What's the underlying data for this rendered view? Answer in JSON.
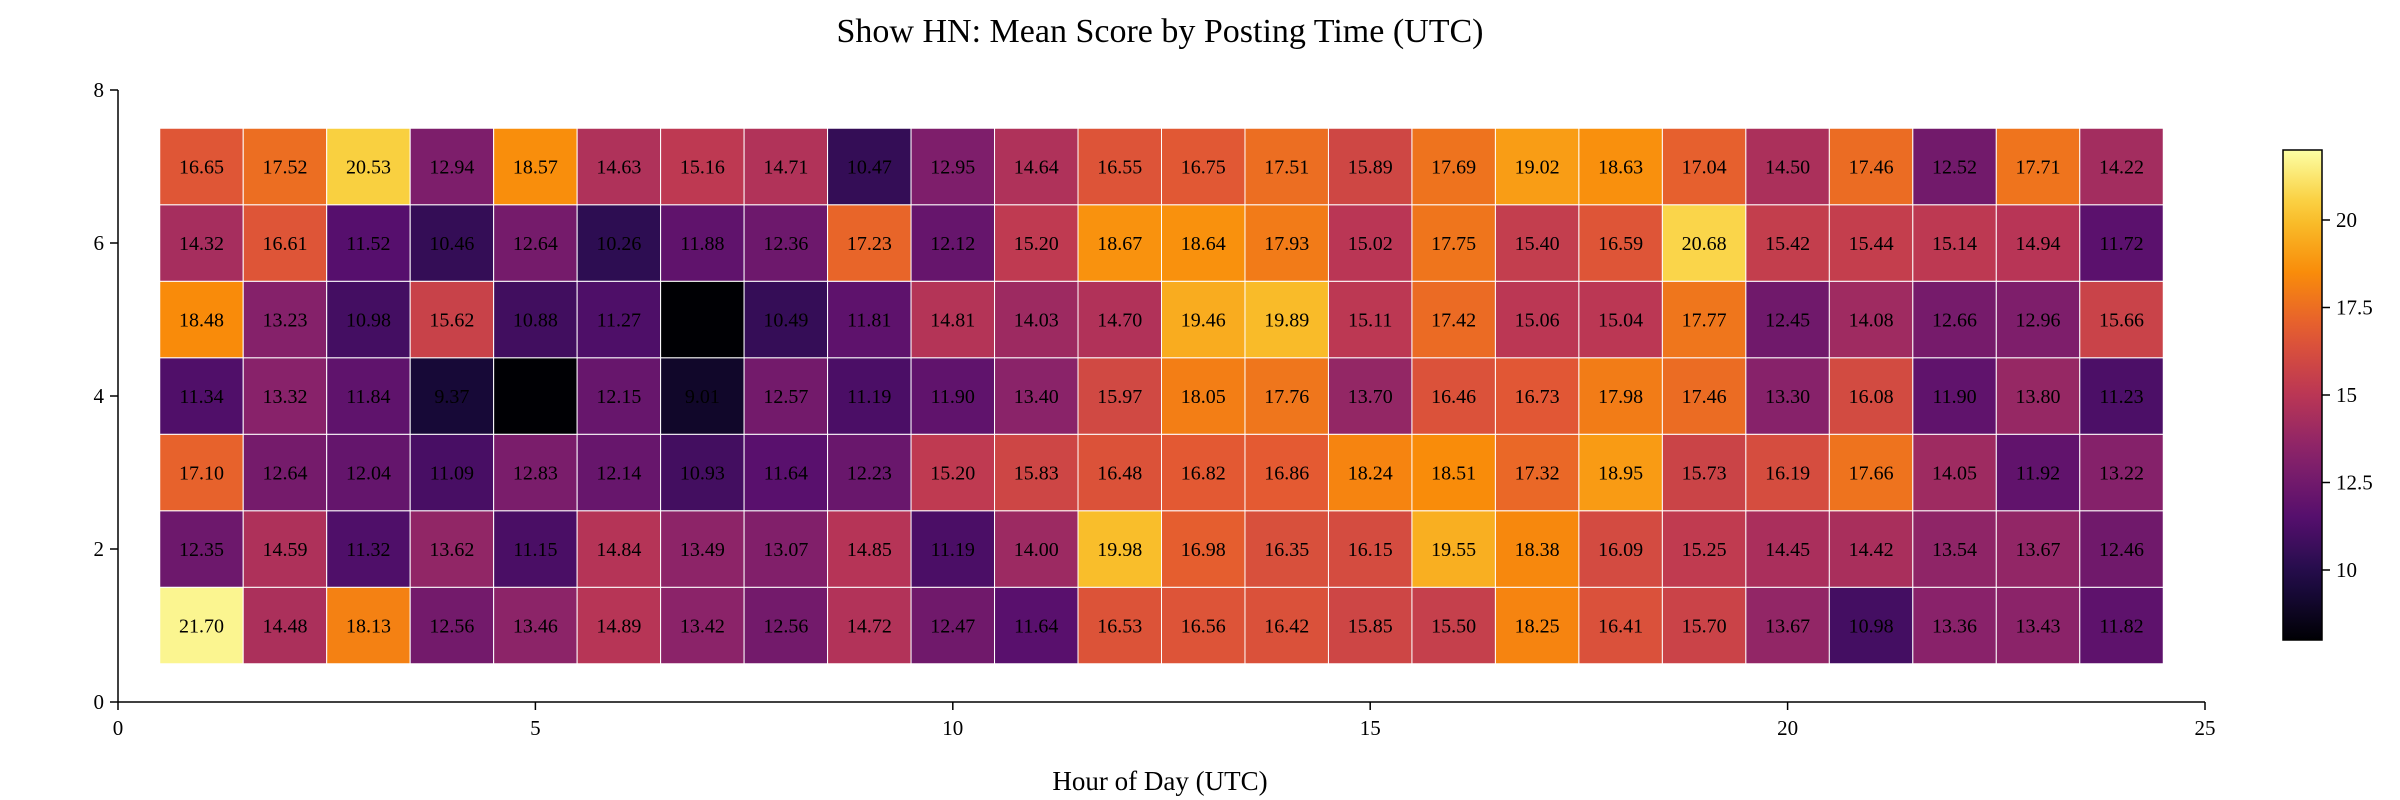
{
  "chart_data": {
    "type": "heatmap",
    "title": "Show HN: Mean Score by Posting Time (UTC)",
    "xlabel": "Hour of Day (UTC)",
    "ylabel": "",
    "xlim": [
      0,
      25
    ],
    "ylim": [
      0,
      8
    ],
    "x_ticks": [
      0,
      5,
      10,
      15,
      20,
      25
    ],
    "y_ticks": [
      0,
      2,
      4,
      6,
      8
    ],
    "x_categories": [
      1,
      2,
      3,
      4,
      5,
      6,
      7,
      8,
      9,
      10,
      11,
      12,
      13,
      14,
      15,
      16,
      17,
      18,
      19,
      20,
      21,
      22,
      23,
      24
    ],
    "y_categories": [
      1,
      2,
      3,
      4,
      5,
      6,
      7
    ],
    "grid": false,
    "colormap": "inferno",
    "color_range": [
      8,
      22
    ],
    "colorbar_ticks": [
      10,
      12.5,
      15,
      17.5,
      20
    ],
    "colorbar_tick_labels": [
      "10",
      "12.5",
      "15",
      "17.5",
      "20"
    ],
    "values": [
      [
        21.7,
        14.48,
        18.13,
        12.56,
        13.46,
        14.89,
        13.42,
        12.56,
        14.72,
        12.47,
        11.64,
        16.53,
        16.56,
        16.42,
        15.85,
        15.5,
        18.25,
        16.41,
        15.7,
        13.67,
        10.98,
        13.36,
        13.43,
        11.82
      ],
      [
        12.35,
        14.59,
        11.32,
        13.62,
        11.15,
        14.84,
        13.49,
        13.07,
        14.85,
        11.19,
        14.0,
        19.98,
        16.98,
        16.35,
        16.15,
        19.55,
        18.38,
        16.09,
        15.25,
        14.45,
        14.42,
        13.54,
        13.67,
        12.46
      ],
      [
        17.1,
        12.64,
        12.04,
        11.09,
        12.83,
        12.14,
        10.93,
        11.64,
        12.23,
        15.2,
        15.83,
        16.48,
        16.82,
        16.86,
        18.24,
        18.51,
        17.32,
        18.95,
        15.73,
        16.19,
        17.66,
        14.05,
        11.92,
        13.22
      ],
      [
        11.34,
        13.32,
        11.84,
        9.37,
        8.0,
        12.15,
        9.01,
        12.57,
        11.19,
        11.9,
        13.4,
        15.97,
        18.05,
        17.76,
        13.7,
        16.46,
        16.73,
        17.98,
        17.46,
        13.3,
        16.08,
        11.9,
        13.8,
        11.23
      ],
      [
        18.48,
        13.23,
        10.98,
        15.62,
        10.88,
        11.27,
        8.0,
        10.49,
        11.81,
        14.81,
        14.03,
        14.7,
        19.46,
        19.89,
        15.11,
        17.42,
        15.06,
        15.04,
        17.77,
        12.45,
        14.08,
        12.66,
        12.96,
        15.66
      ],
      [
        14.32,
        16.61,
        11.52,
        10.46,
        12.64,
        10.26,
        11.88,
        12.36,
        17.23,
        12.12,
        15.2,
        18.67,
        18.64,
        17.93,
        15.02,
        17.75,
        15.4,
        16.59,
        20.68,
        15.42,
        15.44,
        15.14,
        14.94,
        11.72
      ],
      [
        16.65,
        17.52,
        20.53,
        12.94,
        18.57,
        14.63,
        15.16,
        14.71,
        10.47,
        12.95,
        14.64,
        16.55,
        16.75,
        17.51,
        15.89,
        17.69,
        19.02,
        18.63,
        17.04,
        14.5,
        17.46,
        12.52,
        17.71,
        14.22
      ]
    ],
    "cell_labels": [
      [
        "21.70",
        "14.48",
        "18.13",
        "12.56",
        "13.46",
        "14.89",
        "13.42",
        "12.56",
        "14.72",
        "12.47",
        "11.64",
        "16.53",
        "16.56",
        "16.42",
        "15.85",
        "15.50",
        "18.25",
        "16.41",
        "15.70",
        "13.67",
        "10.98",
        "13.36",
        "13.43",
        "11.82"
      ],
      [
        "12.35",
        "14.59",
        "11.32",
        "13.62",
        "11.15",
        "14.84",
        "13.49",
        "13.07",
        "14.85",
        "11.19",
        "14.00",
        "19.98",
        "16.98",
        "16.35",
        "16.15",
        "19.55",
        "18.38",
        "16.09",
        "15.25",
        "14.45",
        "14.42",
        "13.54",
        "13.67",
        "12.46"
      ],
      [
        "17.10",
        "12.64",
        "12.04",
        "11.09",
        "12.83",
        "12.14",
        "10.93",
        "11.64",
        "12.23",
        "15.20",
        "15.83",
        "16.48",
        "16.82",
        "16.86",
        "18.24",
        "18.51",
        "17.32",
        "18.95",
        "15.73",
        "16.19",
        "17.66",
        "14.05",
        "11.92",
        "13.22"
      ],
      [
        "11.34",
        "13.32",
        "11.84",
        "9.37",
        "",
        "12.15",
        "9.01",
        "12.57",
        "11.19",
        "11.90",
        "13.40",
        "15.97",
        "18.05",
        "17.76",
        "13.70",
        "16.46",
        "16.73",
        "17.98",
        "17.46",
        "13.30",
        "16.08",
        "11.90",
        "13.80",
        "11.23"
      ],
      [
        "18.48",
        "13.23",
        "10.98",
        "15.62",
        "10.88",
        "11.27",
        "",
        "10.49",
        "11.81",
        "14.81",
        "14.03",
        "14.70",
        "19.46",
        "19.89",
        "15.11",
        "17.42",
        "15.06",
        "15.04",
        "17.77",
        "12.45",
        "14.08",
        "12.66",
        "12.96",
        "15.66"
      ],
      [
        "14.32",
        "16.61",
        "11.52",
        "10.46",
        "12.64",
        "10.26",
        "11.88",
        "12.36",
        "17.23",
        "12.12",
        "15.20",
        "18.67",
        "18.64",
        "17.93",
        "15.02",
        "17.75",
        "15.40",
        "16.59",
        "20.68",
        "15.42",
        "15.44",
        "15.14",
        "14.94",
        "11.72"
      ],
      [
        "16.65",
        "17.52",
        "20.53",
        "12.94",
        "18.57",
        "14.63",
        "15.16",
        "14.71",
        "10.47",
        "12.95",
        "14.64",
        "16.55",
        "16.75",
        "17.51",
        "15.89",
        "17.69",
        "19.02",
        "18.63",
        "17.04",
        "14.50",
        "17.46",
        "12.52",
        "17.71",
        "14.22"
      ]
    ]
  }
}
